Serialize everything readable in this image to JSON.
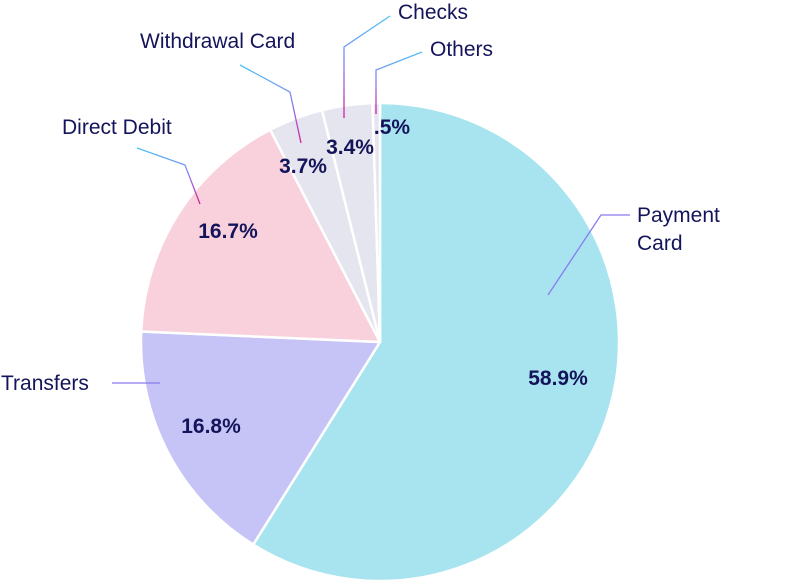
{
  "chart_data": {
    "type": "pie",
    "title": "",
    "start": "top",
    "direction": "clockwise",
    "slices": [
      {
        "name": "Payment Card",
        "label_lines": [
          "Payment",
          "Card"
        ],
        "value": 58.9,
        "value_label": "58.9%",
        "color": "#a8e4ef"
      },
      {
        "name": "Transfers",
        "label_lines": [
          "Transfers"
        ],
        "value": 16.8,
        "value_label": "16.8%",
        "color": "#c6c4f6"
      },
      {
        "name": "Direct Debit",
        "label_lines": [
          "Direct Debit"
        ],
        "value": 16.7,
        "value_label": "16.7%",
        "color": "#f9d1dc"
      },
      {
        "name": "Withdrawal Card",
        "label_lines": [
          "Withdrawal Card"
        ],
        "value": 3.7,
        "value_label": "3.7%",
        "color": "#e5e5ef"
      },
      {
        "name": "Checks",
        "label_lines": [
          "Checks"
        ],
        "value": 3.4,
        "value_label": "3.4%",
        "color": "#e5e5ef"
      },
      {
        "name": "Others",
        "label_lines": [
          "Others"
        ],
        "value": 0.5,
        "value_label": ".5%",
        "color": "#e5e5ef"
      }
    ],
    "text_color": "#14145a"
  }
}
